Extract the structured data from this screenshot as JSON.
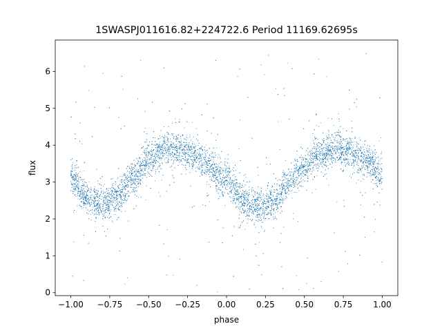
{
  "chart_data": {
    "type": "scatter",
    "title": "1SWASPJ011616.82+224722.6 Period 11169.62695s",
    "xlabel": "phase",
    "ylabel": "flux",
    "xlim": [
      -1.1,
      1.1
    ],
    "ylim": [
      -0.08,
      6.85
    ],
    "xticks": [
      "−1.00",
      "−0.75",
      "−0.50",
      "−0.25",
      "0.00",
      "0.25",
      "0.50",
      "0.75",
      "1.00"
    ],
    "yticks": [
      "0",
      "1",
      "2",
      "3",
      "4",
      "5",
      "6"
    ],
    "grid": false,
    "marker_color": "#1f77b4",
    "series": [
      {
        "profile_phase": [
          -1.0,
          -0.9,
          -0.8,
          -0.7,
          -0.6,
          -0.5,
          -0.4,
          -0.3,
          -0.2,
          -0.1,
          0.0,
          0.1,
          0.2,
          0.3,
          0.4,
          0.5,
          0.6,
          0.7,
          0.8,
          0.9,
          1.0
        ],
        "profile_flux": [
          3.1,
          2.6,
          2.4,
          2.6,
          3.1,
          3.6,
          3.9,
          3.9,
          3.7,
          3.4,
          3.0,
          2.5,
          2.3,
          2.5,
          3.0,
          3.4,
          3.75,
          3.9,
          3.8,
          3.55,
          3.2
        ],
        "scatter_sigma": 0.22,
        "n_points": 9000
      }
    ]
  }
}
